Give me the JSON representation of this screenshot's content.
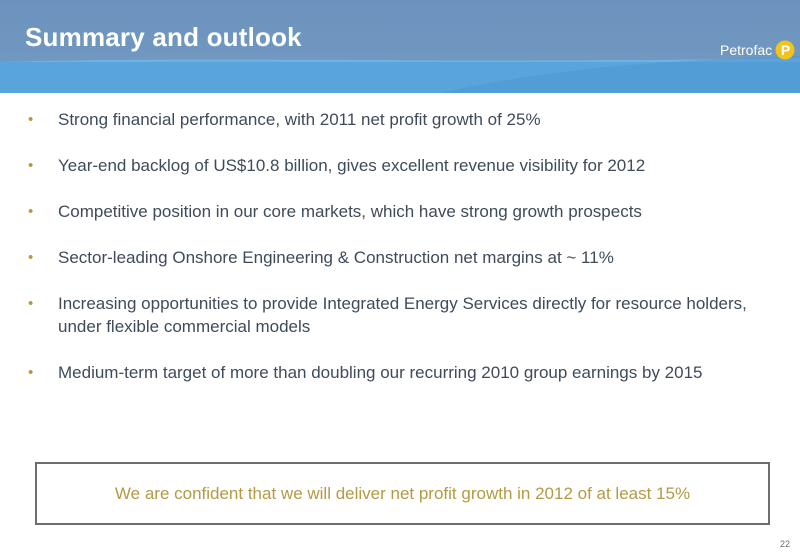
{
  "header": {
    "title": "Summary and outlook",
    "logo_text": "Petrofac",
    "logo_mark_letter": "P",
    "logo_icon": "petrofac-logo-icon"
  },
  "bullets": [
    {
      "text": "Strong financial performance, with 2011 net profit growth of 25%"
    },
    {
      "text": "Year-end backlog of US$10.8 billion, gives excellent revenue visibility for 2012"
    },
    {
      "text": "Competitive position in our core markets, which have strong growth prospects"
    },
    {
      "text": "Sector-leading Onshore Engineering & Construction net margins at ~ 11%"
    },
    {
      "text": "Increasing opportunities to provide Integrated Energy Services directly for resource holders, under flexible commercial models"
    },
    {
      "text": "Medium-term target of more than doubling our recurring 2010 group earnings by 2015"
    }
  ],
  "bullet_symbol": "•",
  "callout": {
    "text": "We are confident that we will deliver net profit growth in 2012 of at least 15%"
  },
  "page_number": "22",
  "colors": {
    "header_blue": "#6f97c0",
    "swoosh_blue": "#5aa4dc",
    "accent_gold": "#b39a44",
    "body_text": "#3e4b5a",
    "logo_yellow": "#f2c318"
  }
}
